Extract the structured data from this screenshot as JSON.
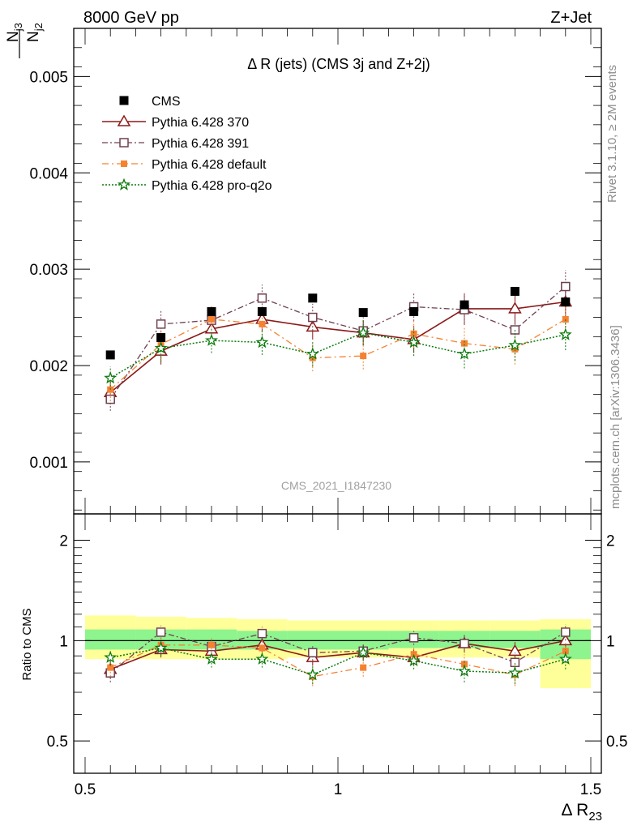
{
  "header": {
    "left": "8000 GeV pp",
    "right": "Z+Jet"
  },
  "side_labels": {
    "rivet": "Rivet 3.1.10, ≥ 2M events",
    "mcplots": "mcplots.cern.ch [arXiv:1306.3436]"
  },
  "watermark": "CMS_2021_I1847230",
  "colors": {
    "cms": "#000000",
    "p370": "#8b1a1a",
    "p391": "#704050",
    "pdefault": "#f58231",
    "pq2o": "#0a7a0a",
    "band_inner": "#8ef48e",
    "band_outer": "#ffff99"
  },
  "chart_data": [
    {
      "panel": "main",
      "type": "scatter",
      "title": "Δ R (jets) (CMS 3j and Z+2j)",
      "ylabel_num": "N",
      "ylabel_num_sub": "j3",
      "ylabel_den": "N",
      "ylabel_den_sub": "j2",
      "xlim": [
        0.5,
        1.5
      ],
      "ylim": [
        0.00046,
        0.0055
      ],
      "yticks": [
        0.001,
        0.002,
        0.003,
        0.004,
        0.005
      ],
      "ytick_labels": [
        "0.001",
        "0.002",
        "0.003",
        "0.004",
        "0.005"
      ],
      "legend_position": "top-left",
      "x": [
        0.55,
        0.65,
        0.75,
        0.85,
        0.95,
        1.05,
        1.15,
        1.25,
        1.35,
        1.45
      ],
      "series": [
        {
          "name": "CMS",
          "key": "cms",
          "style": "cms",
          "values": [
            0.00211,
            0.00229,
            0.00256,
            0.00256,
            0.0027,
            0.00255,
            0.00256,
            0.00263,
            0.00277,
            0.00266
          ]
        },
        {
          "name": "Pythia 6.428 370",
          "key": "p370",
          "style": "p370",
          "values": [
            0.00172,
            0.00215,
            0.00238,
            0.00248,
            0.0024,
            0.00234,
            0.00227,
            0.00259,
            0.00259,
            0.00266
          ],
          "errors": [
            0.00012,
            0.00014,
            0.00013,
            0.00013,
            0.00013,
            0.00013,
            0.00014,
            0.00016,
            0.00016,
            0.00017
          ]
        },
        {
          "name": "Pythia 6.428 391",
          "key": "p391",
          "style": "p391",
          "values": [
            0.00165,
            0.00243,
            0.00247,
            0.0027,
            0.0025,
            0.00236,
            0.00261,
            0.00258,
            0.00237,
            0.00282
          ],
          "errors": [
            0.00012,
            0.00015,
            0.00014,
            0.00014,
            0.00014,
            0.00014,
            0.00015,
            0.00016,
            0.00015,
            0.00017
          ]
        },
        {
          "name": "Pythia 6.428 default",
          "key": "pdefault",
          "style": "pdefault",
          "values": [
            0.00175,
            0.00222,
            0.00248,
            0.00243,
            0.00208,
            0.0021,
            0.00233,
            0.00223,
            0.00217,
            0.00248
          ],
          "errors": [
            0.00012,
            0.00015,
            0.00015,
            0.00015,
            0.00014,
            0.00014,
            0.00015,
            0.00016,
            0.00016,
            0.00016
          ]
        },
        {
          "name": "Pythia 6.428 pro-q2o",
          "key": "pq2o",
          "style": "pq2o",
          "values": [
            0.00187,
            0.00218,
            0.00226,
            0.00224,
            0.00212,
            0.00234,
            0.00224,
            0.00212,
            0.00221,
            0.00232
          ],
          "errors": [
            0.00012,
            0.00014,
            0.00013,
            0.00013,
            0.00013,
            0.00013,
            0.00014,
            0.00015,
            0.00016,
            0.00016
          ]
        }
      ]
    },
    {
      "panel": "ratio",
      "type": "scatter",
      "ylabel": "Ratio to CMS",
      "xlabel": "Δ R",
      "xlabel_sub": "23",
      "xlim": [
        0.5,
        1.5
      ],
      "ylim": [
        0.4,
        2.4
      ],
      "scale": "log",
      "xticks": [
        0.5,
        1,
        1.5
      ],
      "xtick_labels": [
        "0.5",
        "1",
        "1.5"
      ],
      "yticks": [
        0.5,
        1,
        2
      ],
      "ytick_labels": [
        "0.5",
        "1",
        "2"
      ],
      "bands": {
        "x_edges": [
          0.5,
          0.6,
          0.7,
          0.8,
          0.9,
          1.0,
          1.1,
          1.2,
          1.3,
          1.4,
          1.5
        ],
        "inner_lo": [
          0.94,
          0.94,
          0.94,
          0.94,
          0.94,
          0.94,
          0.95,
          0.95,
          0.95,
          0.88
        ],
        "inner_hi": [
          1.08,
          1.08,
          1.08,
          1.07,
          1.07,
          1.07,
          1.07,
          1.07,
          1.07,
          1.08
        ],
        "outer_lo": [
          0.88,
          0.88,
          0.88,
          0.88,
          0.89,
          0.89,
          0.89,
          0.89,
          0.89,
          0.72
        ],
        "outer_hi": [
          1.19,
          1.18,
          1.17,
          1.16,
          1.15,
          1.15,
          1.15,
          1.15,
          1.15,
          1.16
        ]
      },
      "x": [
        0.55,
        0.65,
        0.75,
        0.85,
        0.95,
        1.05,
        1.15,
        1.25,
        1.35,
        1.45
      ],
      "series": [
        {
          "name": "Pythia 6.428 370",
          "key": "p370",
          "style": "p370",
          "values": [
            0.82,
            0.94,
            0.93,
            0.97,
            0.89,
            0.92,
            0.89,
            0.98,
            0.93,
            1.0
          ],
          "errors": [
            0.05,
            0.05,
            0.05,
            0.05,
            0.05,
            0.05,
            0.05,
            0.06,
            0.06,
            0.06
          ]
        },
        {
          "name": "Pythia 6.428 391",
          "key": "p391",
          "style": "p391",
          "values": [
            0.8,
            1.06,
            0.96,
            1.05,
            0.92,
            0.93,
            1.02,
            0.98,
            0.86,
            1.06
          ],
          "errors": [
            0.05,
            0.05,
            0.05,
            0.05,
            0.05,
            0.05,
            0.05,
            0.06,
            0.06,
            0.06
          ]
        },
        {
          "name": "Pythia 6.428 default",
          "key": "pdefault",
          "style": "pdefault",
          "values": [
            0.83,
            0.97,
            0.97,
            0.95,
            0.78,
            0.83,
            0.91,
            0.85,
            0.79,
            0.93
          ],
          "errors": [
            0.05,
            0.05,
            0.05,
            0.05,
            0.05,
            0.05,
            0.05,
            0.06,
            0.06,
            0.06
          ]
        },
        {
          "name": "Pythia 6.428 pro-q2o",
          "key": "pq2o",
          "style": "pq2o",
          "values": [
            0.89,
            0.95,
            0.88,
            0.88,
            0.79,
            0.92,
            0.87,
            0.81,
            0.8,
            0.88
          ],
          "errors": [
            0.05,
            0.05,
            0.05,
            0.05,
            0.05,
            0.05,
            0.05,
            0.06,
            0.06,
            0.06
          ]
        }
      ]
    }
  ]
}
